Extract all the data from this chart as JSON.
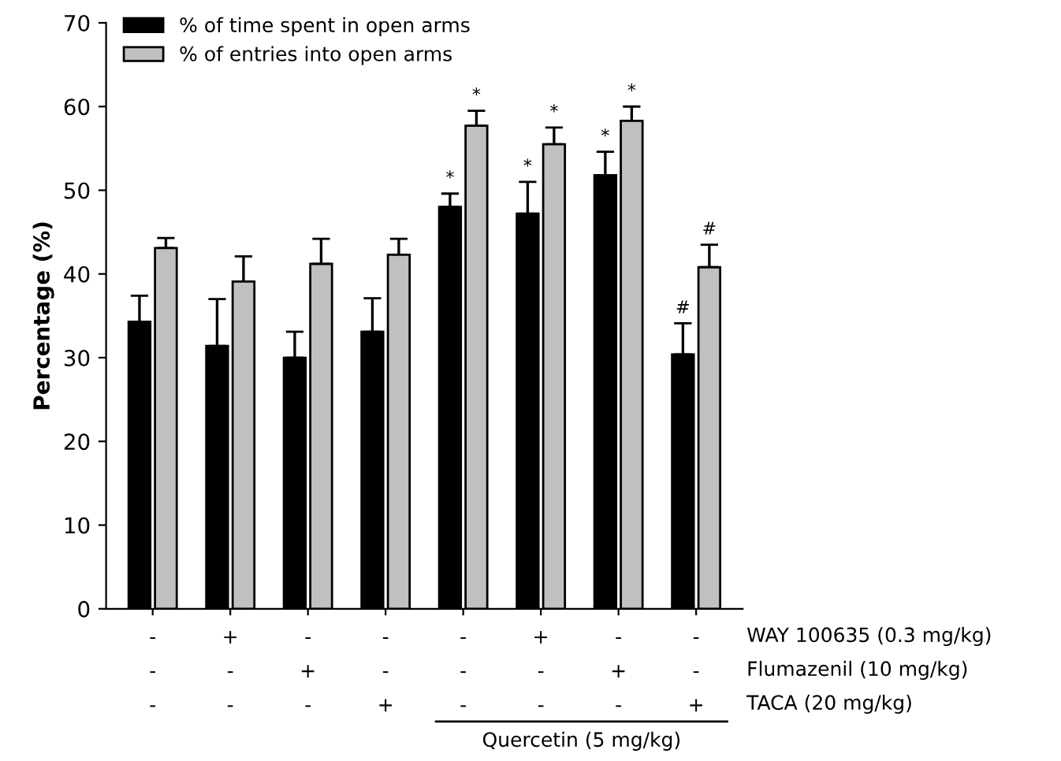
{
  "chart_data": {
    "type": "bar",
    "ylabel": "Percentage (%)",
    "categories": [
      "-\n-\n-",
      "+\n-\n-",
      "-\n+\n-",
      "-\n-\n+",
      "-\n-\n-",
      "+\n-\n-",
      "-\n+\n-",
      "-\n-\n+"
    ],
    "series": [
      {
        "name": "% of time spent in open arms",
        "color": "#000000",
        "values": [
          34.3,
          31.4,
          30.0,
          33.1,
          48.0,
          47.2,
          51.8,
          30.4
        ],
        "errors": [
          [
            34.3,
            37.4
          ],
          [
            31.4,
            37.0
          ],
          [
            30.0,
            33.1
          ],
          [
            33.1,
            37.1
          ],
          [
            48.0,
            49.6
          ],
          [
            47.2,
            51.0
          ],
          [
            51.8,
            54.6
          ],
          [
            30.4,
            34.1
          ]
        ],
        "value_labels": [
          null,
          null,
          null,
          null,
          "*",
          "*",
          "*",
          "#"
        ]
      },
      {
        "name": "% of entries into open arms",
        "color": "#c0c0c0",
        "values": [
          43.1,
          39.1,
          41.2,
          42.3,
          57.7,
          55.5,
          58.3,
          40.8
        ],
        "errors": [
          [
            43.1,
            44.3
          ],
          [
            39.1,
            42.1
          ],
          [
            41.2,
            44.2
          ],
          [
            42.3,
            44.2
          ],
          [
            57.7,
            59.5
          ],
          [
            55.5,
            57.5
          ],
          [
            58.3,
            60.0
          ],
          [
            40.8,
            43.5
          ]
        ],
        "value_labels": [
          null,
          null,
          null,
          null,
          "*",
          "*",
          "*",
          "#"
        ]
      }
    ],
    "ylim": [
      0,
      70
    ],
    "yticks": [
      0,
      10,
      20,
      30,
      40,
      50,
      60,
      70
    ],
    "legend": "top left",
    "annotations": [
      "WAY 100635 (0.3 mg/kg)",
      "Flumazenil (10 mg/kg)",
      "TACA (20 mg/kg)",
      "Quercetin (5 mg/kg)"
    ]
  }
}
